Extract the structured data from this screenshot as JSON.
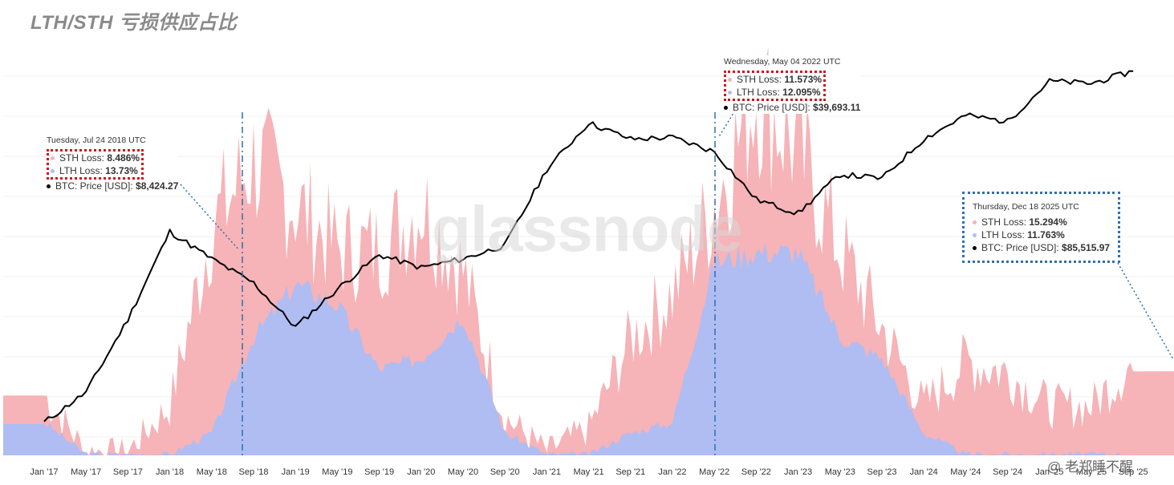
{
  "title": "LTH/STH 亏损供应占比",
  "watermark": "glassnode",
  "credit": "@ 老郑睡不醒",
  "colors": {
    "sth": "#f6b3b8",
    "lth": "#afbdf3",
    "price": "#000000",
    "marker": "#2f6fae",
    "box_red": "#d0131b"
  },
  "tooltips": [
    {
      "date": "Tuesday, Jul 24 2018 UTC",
      "sth_label": "STH Loss: ",
      "sth_value": "8.486%",
      "lth_label": "LTH Loss: ",
      "lth_value": "13.73%",
      "price_label": "BTC: Price [USD]: ",
      "price_value": "$8,424.27"
    },
    {
      "date": "Wednesday, May 04 2022 UTC",
      "sth_label": "STH Loss: ",
      "sth_value": "11.573%",
      "lth_label": "LTH Loss: ",
      "lth_value": "12.095%",
      "price_label": "BTC: Price [USD]: ",
      "price_value": "$39,693.11"
    },
    {
      "date": "Thursday, Dec 18 2025 UTC",
      "sth_label": "STH Loss: ",
      "sth_value": "15.294%",
      "lth_label": "LTH Loss: ",
      "lth_value": "11.763%",
      "price_label": "BTC: Price [USD]: ",
      "price_value": "$85,515.97"
    }
  ],
  "chart_data": {
    "type": "area",
    "categories": [
      "Jan '17",
      "May '17",
      "Sep '17",
      "Jan '18",
      "May '18",
      "Sep '18",
      "Jan '19",
      "May '19",
      "Sep '19",
      "Jan '20",
      "May '20",
      "Sep '20",
      "Jan '21",
      "May '21",
      "Sep '21",
      "Jan '22",
      "May '22",
      "Sep '22",
      "Jan '23",
      "May '23",
      "Sep '23",
      "Jan '24",
      "May '24",
      "Sep '24",
      "Jan '25",
      "May '25",
      "Sep '25"
    ],
    "series": [
      {
        "name": "STH Loss",
        "values": [
          5,
          0,
          0,
          4,
          20,
          26,
          22,
          18,
          18,
          22,
          16,
          3,
          0,
          2,
          10,
          14,
          22,
          32,
          27,
          18,
          11,
          4,
          8,
          7,
          4,
          4,
          8
        ]
      },
      {
        "name": "LTH Loss",
        "values": [
          3,
          0,
          0,
          0,
          2,
          11,
          16,
          14,
          8,
          9,
          13,
          2,
          0,
          0,
          2,
          3,
          18,
          19,
          19,
          11,
          9,
          2,
          0,
          0,
          0,
          0,
          0
        ]
      },
      {
        "name": "BTC: Price [USD]",
        "values": [
          1000,
          1500,
          4000,
          13000,
          9000,
          6500,
          3600,
          6000,
          9500,
          8000,
          9000,
          10800,
          30000,
          56000,
          45000,
          46000,
          38000,
          20000,
          16600,
          28000,
          26500,
          45000,
          62000,
          57000,
          98000,
          95000,
          112000
        ]
      }
    ],
    "markers": [
      "Jul 24 2018",
      "May 04 2022",
      "Dec 18 2025"
    ]
  }
}
